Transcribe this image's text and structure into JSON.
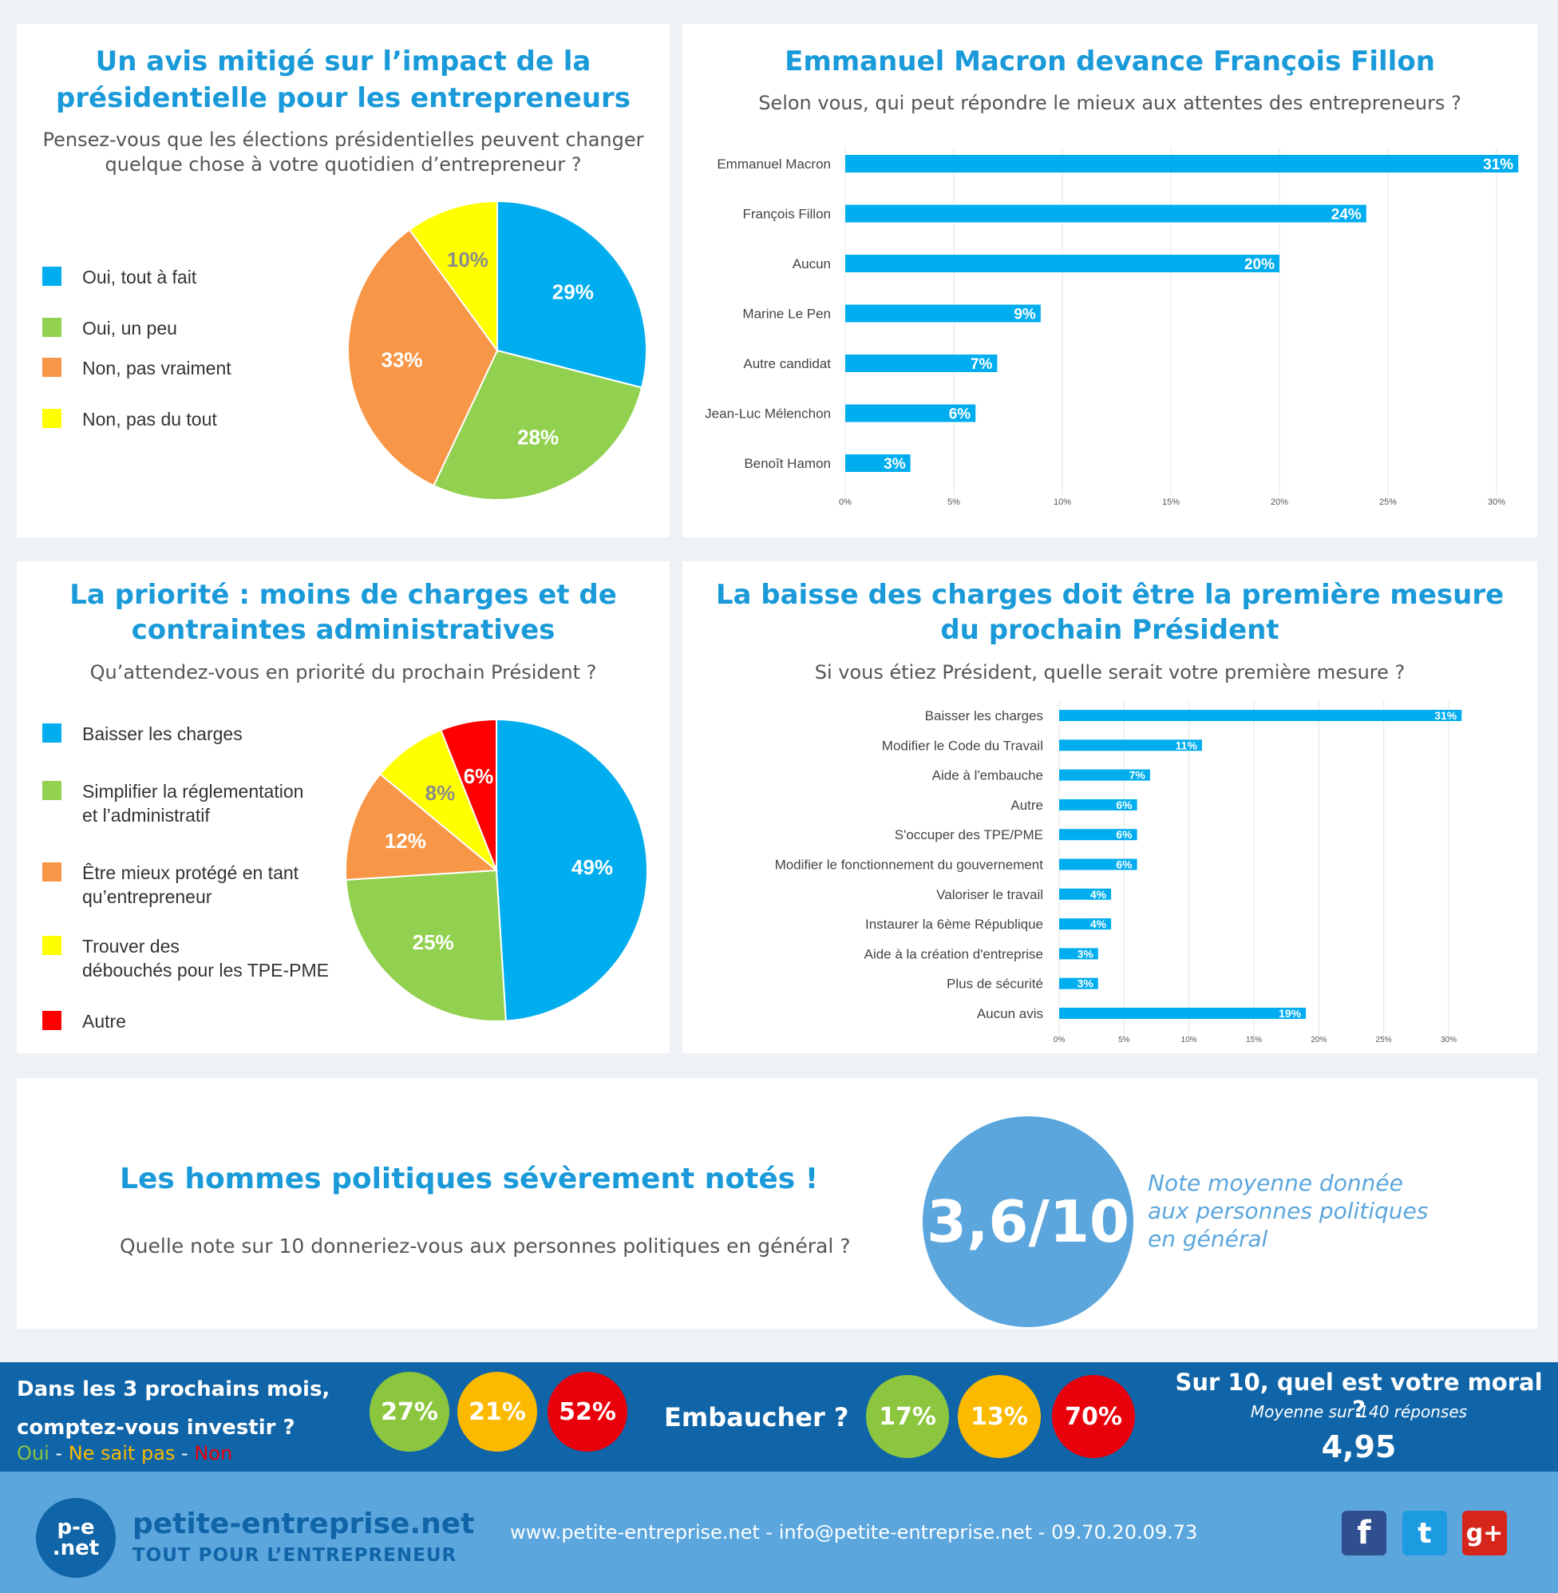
{
  "panel1": {
    "title": "Un avis mitigé sur l’impact de la\nprésidentielle pour les entrepreneurs",
    "subtitle": "Pensez-vous que les élections présidentielles peuvent changer\nquelque chose à votre quotidien d’entrepreneur ?"
  },
  "panel2": {
    "title": "Emmanuel Macron devance François Fillon",
    "subtitle": "Selon vous, qui peut répondre le mieux aux attentes des entrepreneurs ?"
  },
  "panel3": {
    "title": "La priorité : moins de charges et de\ncontraintes administratives",
    "subtitle": "Qu’attendez-vous en priorité du prochain Président ?"
  },
  "panel4": {
    "title": "La baisse des charges doit être la première mesure\ndu prochain Président",
    "subtitle": "Si vous étiez Président, quelle serait votre première mesure ?"
  },
  "panel5": {
    "title": "Les hommes politiques sévèrement notés !",
    "subtitle": "Quelle note sur 10 donneriez-vous aux personnes politiques en général ?",
    "score": "3,6/10",
    "score_caption": "Note moyenne donnée\naux personnes politiques\nen général"
  },
  "band": {
    "invest_question": "Dans les 3 prochains mois,\ncomptez-vous investir ?",
    "legend_oui": "Oui",
    "legend_sep1": " - ",
    "legend_nsp": "Ne sait pas",
    "legend_sep2": " - ",
    "legend_non": "Non",
    "invest_values": [
      "27%",
      "21%",
      "52%"
    ],
    "hire_question": "Embaucher ?",
    "hire_values": [
      "17%",
      "13%",
      "70%"
    ],
    "moral_question": "Sur 10, quel est votre moral ?",
    "moral_sub": "Moyenne sur 140 réponses",
    "moral_value": "4,95",
    "colors": {
      "oui": "#8cc63f",
      "nsp": "#fbb900",
      "non": "#e8000b"
    }
  },
  "footer": {
    "logo_mark": "p-e\n.net",
    "brand": "petite-entreprise.net",
    "tagline": "TOUT POUR L’ENTREPRENEUR",
    "contact": "www.petite-entreprise.net - info@petite-entreprise.net - 09.70.20.09.73",
    "social_icons": [
      "facebook-icon",
      "twitter-icon",
      "google-plus-icon"
    ],
    "social_glyphs": [
      "f",
      "t",
      "g+"
    ]
  },
  "chart_data": [
    {
      "type": "pie",
      "labels": [
        "Oui, tout à fait",
        "Oui, un peu",
        "Non, pas vraiment",
        "Non, pas du tout"
      ],
      "values": [
        29,
        28,
        33,
        10
      ],
      "value_labels": [
        "29%",
        "28%",
        "33%",
        "10%"
      ],
      "colors": [
        "#00adef",
        "#92d050",
        "#f79646",
        "#ffff00"
      ]
    },
    {
      "type": "bar",
      "orientation": "horizontal",
      "categories": [
        "Emmanuel Macron",
        "François Fillon",
        "Aucun",
        "Marine Le Pen",
        "Autre candidat",
        "Jean-Luc Mélenchon",
        "Benoît Hamon"
      ],
      "values": [
        31,
        24,
        20,
        9,
        7,
        6,
        3
      ],
      "value_labels": [
        "31%",
        "24%",
        "20%",
        "9%",
        "7%",
        "6%",
        "3%"
      ],
      "xlim": [
        0,
        30
      ],
      "ticks": [
        "0%",
        "5%",
        "10%",
        "15%",
        "20%",
        "25%",
        "30%"
      ],
      "color": "#00adef"
    },
    {
      "type": "pie",
      "labels": [
        "Baisser les charges",
        "Simplifier la réglementation\net l’administratif",
        "Être mieux protégé en tant\nqu’entrepreneur",
        "Trouver des\ndébouchés pour les TPE-PME",
        "Autre"
      ],
      "values": [
        49,
        25,
        12,
        8,
        6
      ],
      "value_labels": [
        "49%",
        "25%",
        "12%",
        "8%",
        "6%"
      ],
      "colors": [
        "#00adef",
        "#92d050",
        "#f79646",
        "#ffff00",
        "#ff0000"
      ]
    },
    {
      "type": "bar",
      "orientation": "horizontal",
      "categories": [
        "Baisser les charges",
        "Modifier le Code du Travail",
        "Aide à l'embauche",
        "Autre",
        "S'occuper des TPE/PME",
        "Modifier le fonctionnement du gouvernement",
        "Valoriser le travail",
        "Instaurer la 6ème République",
        "Aide à la création d'entreprise",
        "Plus de sécurité",
        "Aucun avis"
      ],
      "values": [
        31,
        11,
        7,
        6,
        6,
        6,
        4,
        4,
        3,
        3,
        19
      ],
      "value_labels": [
        "31%",
        "11%",
        "7%",
        "6%",
        "6%",
        "6%",
        "4%",
        "4%",
        "3%",
        "3%",
        "19%"
      ],
      "xlim": [
        0,
        30
      ],
      "ticks": [
        "0%",
        "5%",
        "10%",
        "15%",
        "20%",
        "25%",
        "30%"
      ],
      "color": "#00adef"
    }
  ]
}
